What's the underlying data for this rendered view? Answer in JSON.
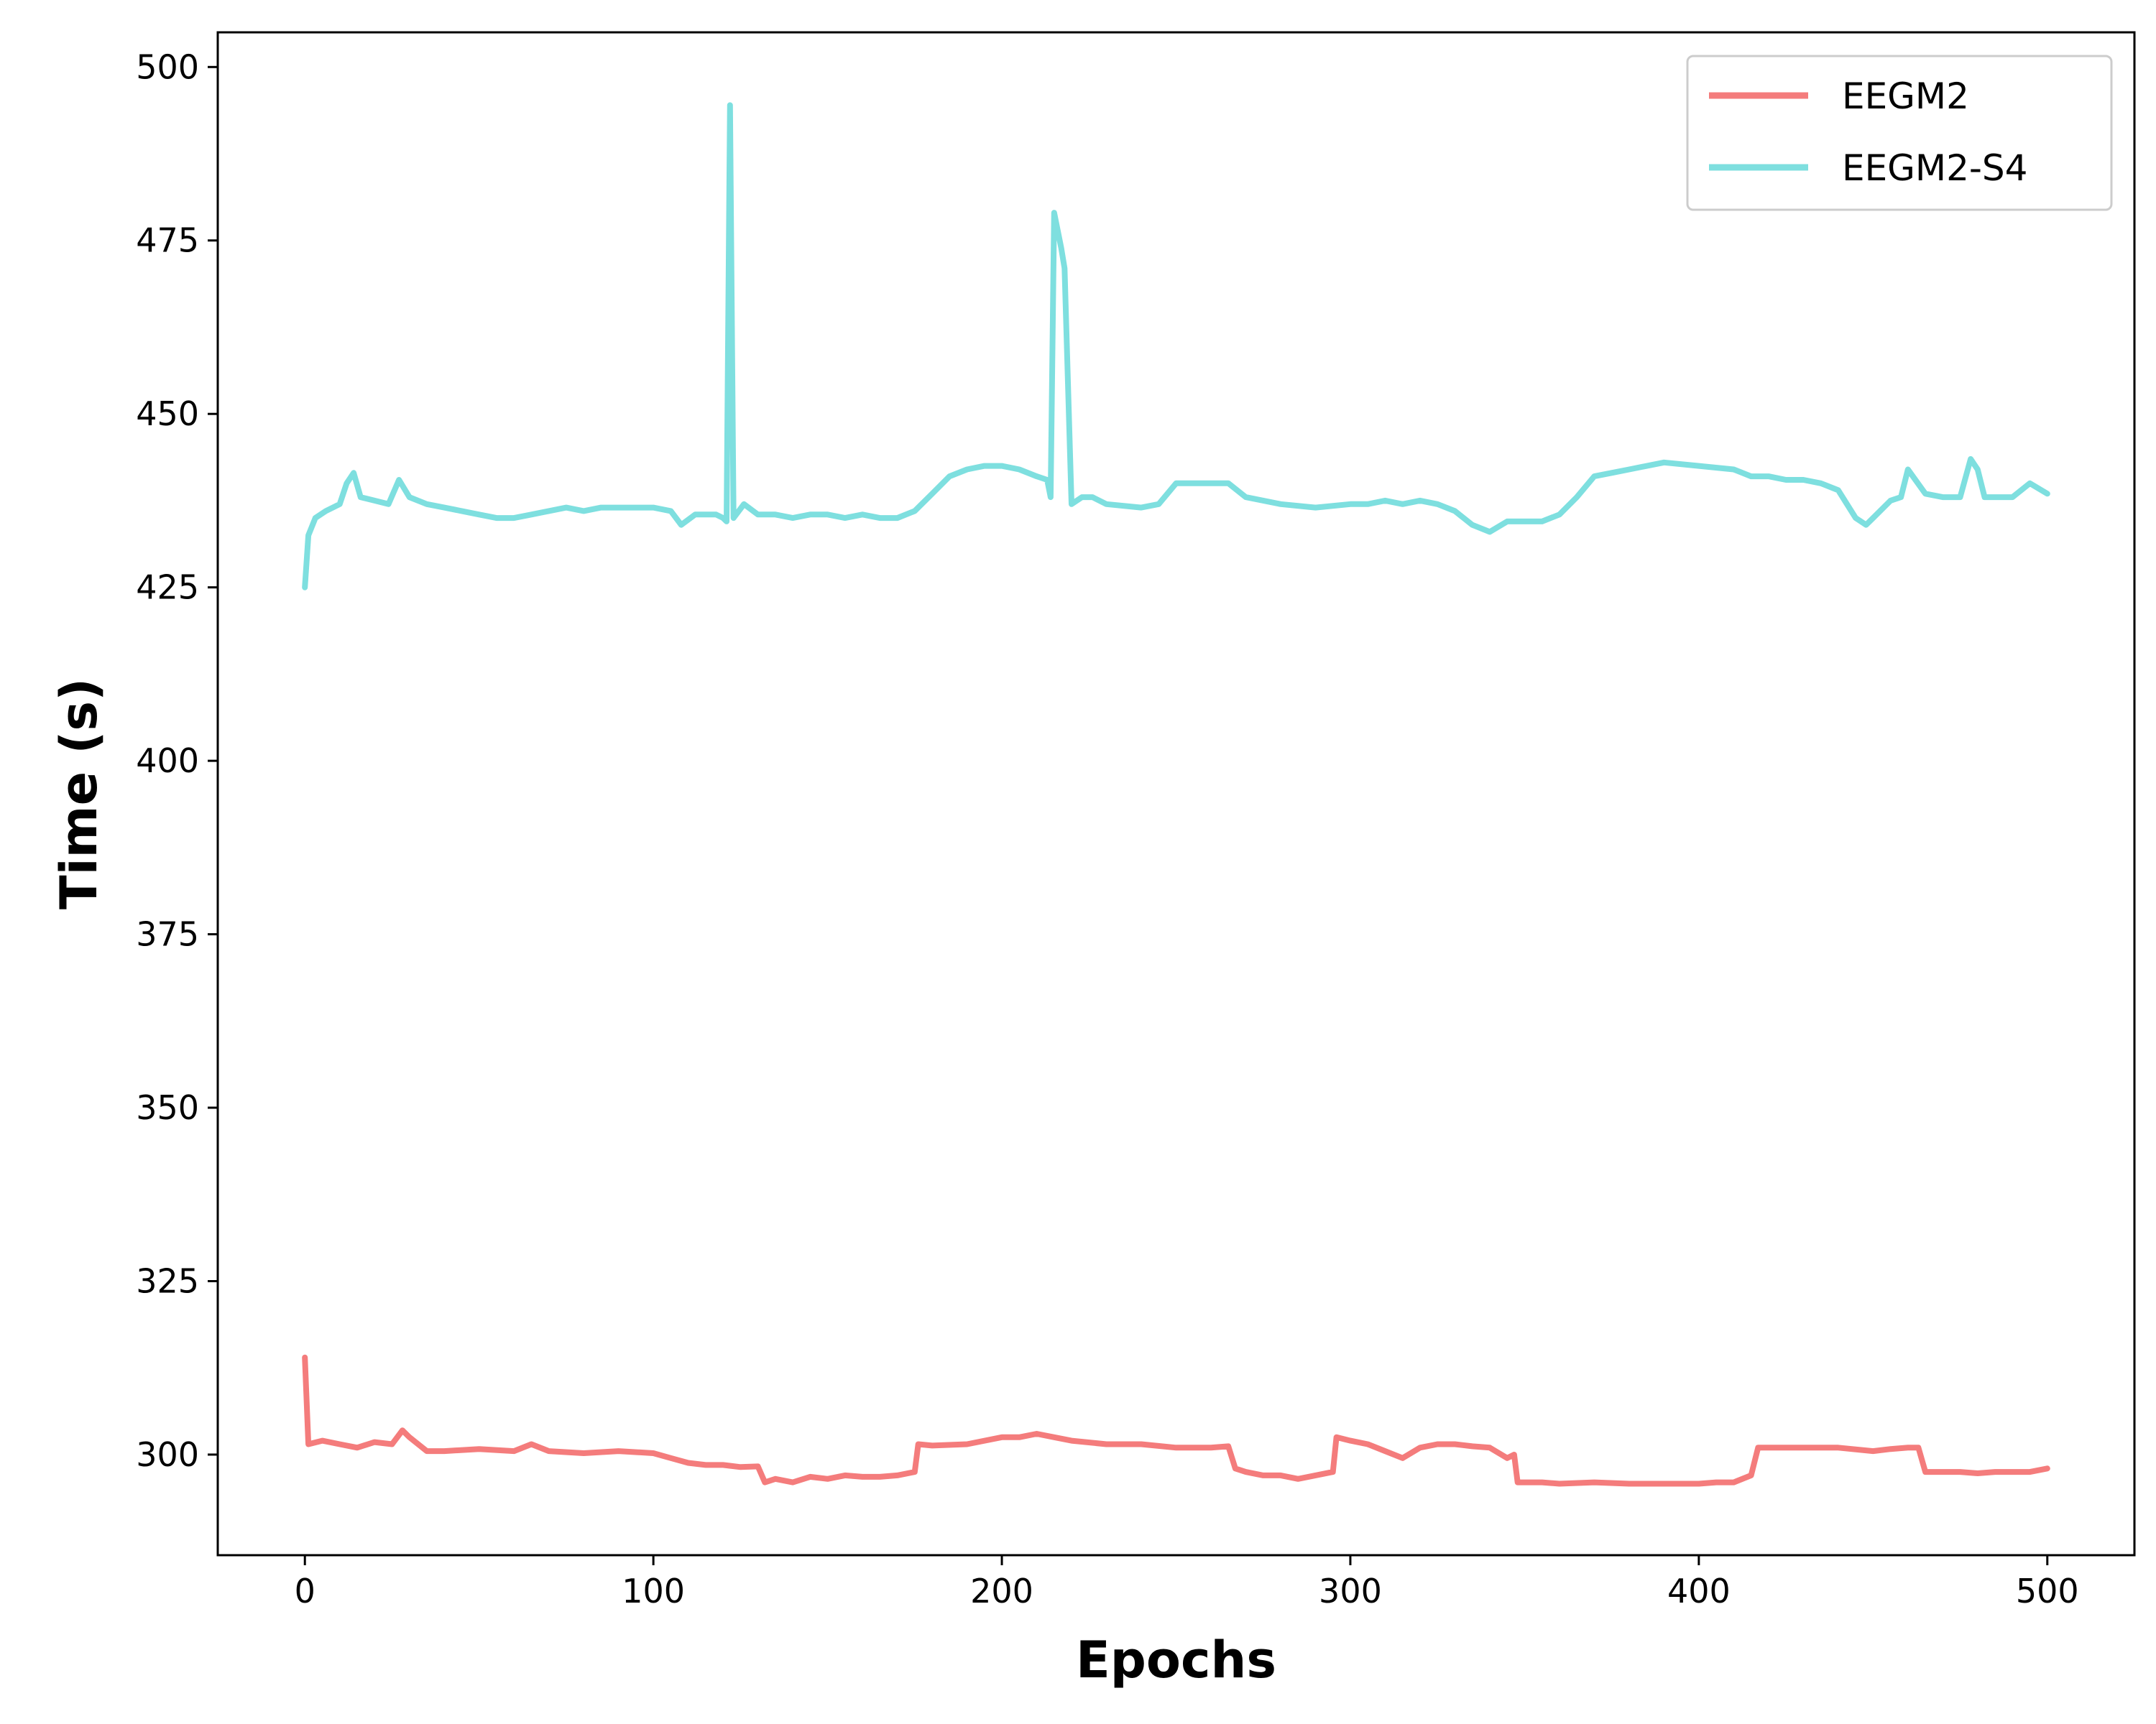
{
  "chart_data": {
    "type": "line",
    "title": "",
    "xlabel": "Epochs",
    "ylabel": "Time (s)",
    "xlim": [
      -25,
      525
    ],
    "ylim": [
      285.5,
      505
    ],
    "xticks": [
      0,
      100,
      200,
      300,
      400,
      500
    ],
    "yticks": [
      300,
      325,
      350,
      375,
      400,
      425,
      450,
      475,
      500
    ],
    "grid": false,
    "legend": "top-right",
    "series": [
      {
        "name": "EEGM2",
        "color": "#f47c7c",
        "points": [
          [
            0,
            314
          ],
          [
            1,
            301.5
          ],
          [
            5,
            302
          ],
          [
            10,
            301.5
          ],
          [
            15,
            301
          ],
          [
            20,
            301.8
          ],
          [
            25,
            301.5
          ],
          [
            28,
            303.5
          ],
          [
            30,
            302.5
          ],
          [
            35,
            300.5
          ],
          [
            40,
            300.5
          ],
          [
            50,
            300.8
          ],
          [
            60,
            300.5
          ],
          [
            65,
            301.5
          ],
          [
            70,
            300.5
          ],
          [
            80,
            300.2
          ],
          [
            90,
            300.5
          ],
          [
            100,
            300.2
          ],
          [
            105,
            299.5
          ],
          [
            110,
            298.8
          ],
          [
            115,
            298.5
          ],
          [
            120,
            298.5
          ],
          [
            125,
            298.2
          ],
          [
            130,
            298.3
          ],
          [
            132,
            296
          ],
          [
            135,
            296.5
          ],
          [
            140,
            296
          ],
          [
            145,
            296.8
          ],
          [
            150,
            296.5
          ],
          [
            155,
            297
          ],
          [
            160,
            296.8
          ],
          [
            165,
            296.8
          ],
          [
            170,
            297
          ],
          [
            175,
            297.5
          ],
          [
            176,
            301.5
          ],
          [
            180,
            301.3
          ],
          [
            190,
            301.5
          ],
          [
            200,
            302.5
          ],
          [
            205,
            302.5
          ],
          [
            210,
            303
          ],
          [
            215,
            302.5
          ],
          [
            220,
            302
          ],
          [
            230,
            301.5
          ],
          [
            240,
            301.5
          ],
          [
            250,
            301
          ],
          [
            260,
            301
          ],
          [
            265,
            301.2
          ],
          [
            267,
            298
          ],
          [
            270,
            297.5
          ],
          [
            275,
            297
          ],
          [
            280,
            297
          ],
          [
            285,
            296.5
          ],
          [
            290,
            297
          ],
          [
            295,
            297.5
          ],
          [
            296,
            302.5
          ],
          [
            300,
            302
          ],
          [
            305,
            301.5
          ],
          [
            310,
            300.5
          ],
          [
            315,
            299.5
          ],
          [
            320,
            301
          ],
          [
            325,
            301.5
          ],
          [
            330,
            301.5
          ],
          [
            335,
            301.2
          ],
          [
            340,
            301
          ],
          [
            345,
            299.5
          ],
          [
            347,
            300
          ],
          [
            348,
            296
          ],
          [
            355,
            296
          ],
          [
            360,
            295.8
          ],
          [
            370,
            296
          ],
          [
            380,
            295.8
          ],
          [
            390,
            295.8
          ],
          [
            400,
            295.8
          ],
          [
            405,
            296
          ],
          [
            410,
            296
          ],
          [
            415,
            297
          ],
          [
            417,
            301
          ],
          [
            420,
            301
          ],
          [
            430,
            301
          ],
          [
            440,
            301
          ],
          [
            450,
            300.5
          ],
          [
            455,
            300.8
          ],
          [
            460,
            301
          ],
          [
            463,
            301
          ],
          [
            465,
            297.5
          ],
          [
            470,
            297.5
          ],
          [
            475,
            297.5
          ],
          [
            480,
            297.3
          ],
          [
            485,
            297.5
          ],
          [
            490,
            297.5
          ],
          [
            495,
            297.5
          ],
          [
            500,
            298
          ]
        ]
      },
      {
        "name": "EEGM2-S4",
        "color": "#7edfdf",
        "points": [
          [
            0,
            425
          ],
          [
            1,
            432.5
          ],
          [
            3,
            435
          ],
          [
            6,
            436
          ],
          [
            10,
            437
          ],
          [
            12,
            440
          ],
          [
            14,
            441.5
          ],
          [
            16,
            438
          ],
          [
            20,
            437.5
          ],
          [
            24,
            437
          ],
          [
            27,
            440.5
          ],
          [
            30,
            438
          ],
          [
            35,
            437
          ],
          [
            40,
            436.5
          ],
          [
            45,
            436
          ],
          [
            50,
            435.5
          ],
          [
            55,
            435
          ],
          [
            60,
            435
          ],
          [
            65,
            435.5
          ],
          [
            70,
            436
          ],
          [
            75,
            436.5
          ],
          [
            80,
            436
          ],
          [
            85,
            436.5
          ],
          [
            90,
            436.5
          ],
          [
            95,
            436.5
          ],
          [
            100,
            436.5
          ],
          [
            105,
            436
          ],
          [
            108,
            434
          ],
          [
            112,
            435.5
          ],
          [
            118,
            435.5
          ],
          [
            120,
            435
          ],
          [
            121,
            434.5
          ],
          [
            122,
            494.5
          ],
          [
            123,
            435
          ],
          [
            126,
            437
          ],
          [
            130,
            435.5
          ],
          [
            135,
            435.5
          ],
          [
            140,
            435
          ],
          [
            145,
            435.5
          ],
          [
            150,
            435.5
          ],
          [
            155,
            435
          ],
          [
            160,
            435.5
          ],
          [
            165,
            435
          ],
          [
            170,
            435
          ],
          [
            175,
            436
          ],
          [
            180,
            438.5
          ],
          [
            185,
            441
          ],
          [
            190,
            442
          ],
          [
            195,
            442.5
          ],
          [
            200,
            442.5
          ],
          [
            205,
            442
          ],
          [
            210,
            441
          ],
          [
            213,
            440.5
          ],
          [
            214,
            438
          ],
          [
            215,
            479
          ],
          [
            217,
            474
          ],
          [
            218,
            471
          ],
          [
            220,
            437
          ],
          [
            223,
            438
          ],
          [
            226,
            438
          ],
          [
            230,
            437
          ],
          [
            240,
            436.5
          ],
          [
            245,
            437
          ],
          [
            250,
            440
          ],
          [
            255,
            440
          ],
          [
            260,
            440
          ],
          [
            265,
            440
          ],
          [
            270,
            438
          ],
          [
            280,
            437
          ],
          [
            290,
            436.5
          ],
          [
            300,
            437
          ],
          [
            305,
            437
          ],
          [
            310,
            437.5
          ],
          [
            315,
            437
          ],
          [
            320,
            437.5
          ],
          [
            325,
            437
          ],
          [
            330,
            436
          ],
          [
            335,
            434
          ],
          [
            340,
            433
          ],
          [
            345,
            434.5
          ],
          [
            350,
            434.5
          ],
          [
            355,
            434.5
          ],
          [
            360,
            435.5
          ],
          [
            365,
            438
          ],
          [
            370,
            441
          ],
          [
            375,
            441.5
          ],
          [
            380,
            442
          ],
          [
            390,
            443
          ],
          [
            400,
            442.5
          ],
          [
            410,
            442
          ],
          [
            415,
            441
          ],
          [
            420,
            441
          ],
          [
            425,
            440.5
          ],
          [
            430,
            440.5
          ],
          [
            435,
            440
          ],
          [
            440,
            439
          ],
          [
            445,
            435
          ],
          [
            448,
            434
          ],
          [
            450,
            435
          ],
          [
            455,
            437.5
          ],
          [
            458,
            438
          ],
          [
            460,
            442
          ],
          [
            465,
            438.5
          ],
          [
            470,
            438
          ],
          [
            475,
            438
          ],
          [
            478,
            443.5
          ],
          [
            480,
            442
          ],
          [
            482,
            438
          ],
          [
            485,
            438
          ],
          [
            490,
            438
          ],
          [
            495,
            440
          ],
          [
            500,
            438.5
          ]
        ]
      }
    ]
  }
}
